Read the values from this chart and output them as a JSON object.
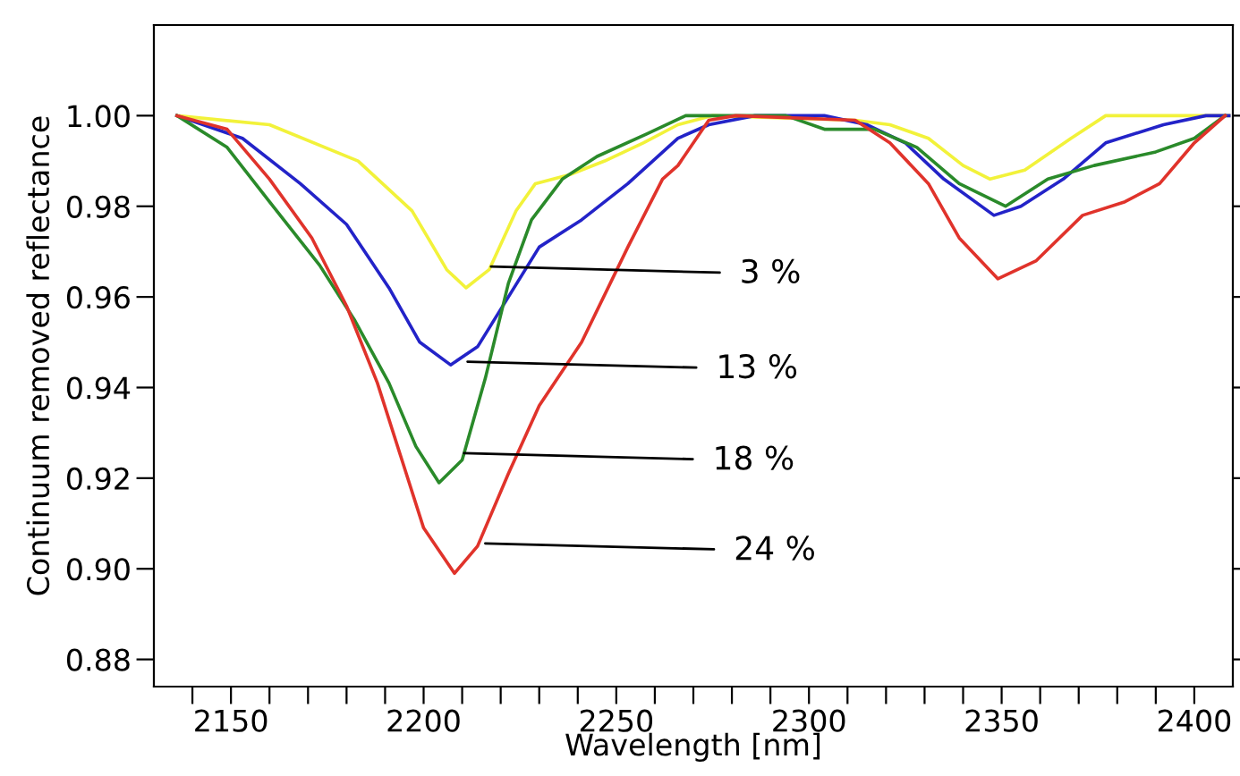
{
  "chart_data": {
    "type": "line",
    "xlabel": "Wavelength [nm]",
    "ylabel": "Continuum removed reflectance",
    "xlim": [
      2130,
      2410
    ],
    "ylim": [
      0.874,
      1.02
    ],
    "xticks": [
      {
        "value": 2140,
        "label": null
      },
      2150,
      {
        "value": 2160,
        "label": null
      },
      {
        "value": 2170,
        "label": null
      },
      {
        "value": 2180,
        "label": null
      },
      {
        "value": 2190,
        "label": null
      },
      2200,
      {
        "value": 2210,
        "label": null
      },
      {
        "value": 2220,
        "label": null
      },
      {
        "value": 2230,
        "label": null
      },
      {
        "value": 2240,
        "label": null
      },
      2250,
      {
        "value": 2260,
        "label": null
      },
      {
        "value": 2270,
        "label": null
      },
      {
        "value": 2280,
        "label": null
      },
      {
        "value": 2290,
        "label": null
      },
      2300,
      {
        "value": 2310,
        "label": null
      },
      {
        "value": 2320,
        "label": null
      },
      {
        "value": 2330,
        "label": null
      },
      {
        "value": 2340,
        "label": null
      },
      2350,
      {
        "value": 2360,
        "label": null
      },
      {
        "value": 2370,
        "label": null
      },
      {
        "value": 2380,
        "label": null
      },
      {
        "value": 2390,
        "label": null
      },
      2400
    ],
    "yticks": [
      {
        "value": 0.88,
        "label": "0.88"
      },
      {
        "value": 0.9,
        "label": "0.90"
      },
      {
        "value": 0.92,
        "label": "0.92"
      },
      {
        "value": 0.94,
        "label": "0.94"
      },
      {
        "value": 0.96,
        "label": "0.96"
      },
      {
        "value": 0.98,
        "label": "0.98"
      },
      {
        "value": 1.0,
        "label": "1.00"
      }
    ],
    "grid": false,
    "legend": false,
    "marker": "none",
    "line_style": "solid",
    "series": [
      {
        "color": "#f2f23a",
        "x": [
          2136,
          2160,
          2183,
          2197,
          2206,
          2211,
          2217,
          2224,
          2229,
          2238,
          2247,
          2257,
          2266,
          2275,
          2312,
          2321,
          2331,
          2340,
          2347,
          2356,
          2368,
          2377,
          2409
        ],
        "values": [
          1.0,
          0.998,
          0.99,
          0.979,
          0.966,
          0.962,
          0.966,
          0.979,
          0.985,
          0.987,
          0.99,
          0.994,
          0.998,
          1.0,
          0.999,
          0.998,
          0.995,
          0.989,
          0.986,
          0.988,
          0.995,
          1.0,
          1.0
        ]
      },
      {
        "color": "#2323c8",
        "x": [
          2136,
          2153,
          2168,
          2180,
          2191,
          2199,
          2207,
          2214,
          2222,
          2230,
          2241,
          2253,
          2266,
          2274,
          2286,
          2304,
          2315,
          2325,
          2335,
          2348,
          2355,
          2366,
          2377,
          2392,
          2403,
          2409
        ],
        "values": [
          1.0,
          0.995,
          0.985,
          0.976,
          0.962,
          0.95,
          0.945,
          0.949,
          0.96,
          0.971,
          0.977,
          0.985,
          0.995,
          0.998,
          1.0,
          1.0,
          0.998,
          0.994,
          0.986,
          0.978,
          0.98,
          0.986,
          0.994,
          0.998,
          1.0,
          1.0
        ]
      },
      {
        "color": "#2a8a2a",
        "x": [
          2136,
          2149,
          2160,
          2173,
          2182,
          2191,
          2198,
          2204,
          2210,
          2216,
          2222,
          2228,
          2236,
          2245,
          2258,
          2268,
          2294,
          2304,
          2317,
          2328,
          2339,
          2351,
          2362,
          2374,
          2390,
          2400,
          2408
        ],
        "values": [
          1.0,
          0.993,
          0.981,
          0.967,
          0.955,
          0.941,
          0.927,
          0.919,
          0.924,
          0.942,
          0.963,
          0.977,
          0.986,
          0.991,
          0.996,
          1.0,
          1.0,
          0.997,
          0.997,
          0.993,
          0.985,
          0.98,
          0.986,
          0.989,
          0.992,
          0.995,
          1.0
        ]
      },
      {
        "color": "#e0332b",
        "x": [
          2136,
          2149,
          2160,
          2171,
          2180,
          2188,
          2194,
          2200,
          2208,
          2214,
          2222,
          2230,
          2241,
          2253,
          2262,
          2266,
          2274,
          2281,
          2312,
          2321,
          2331,
          2339,
          2349,
          2359,
          2371,
          2382,
          2391,
          2400,
          2408
        ],
        "values": [
          1.0,
          0.997,
          0.986,
          0.973,
          0.958,
          0.941,
          0.925,
          0.909,
          0.899,
          0.905,
          0.921,
          0.936,
          0.95,
          0.971,
          0.986,
          0.989,
          0.999,
          1.0,
          0.999,
          0.994,
          0.985,
          0.973,
          0.964,
          0.968,
          0.978,
          0.981,
          0.985,
          0.994,
          1.0
        ]
      }
    ],
    "annotations": [
      {
        "text": "3 %",
        "x": 2217.5,
        "y": 0.9667
      },
      {
        "text": "13 %",
        "x": 2211.4,
        "y": 0.9457
      },
      {
        "text": "18 %",
        "x": 2210.5,
        "y": 0.9255
      },
      {
        "text": "24 %",
        "x": 2216,
        "y": 0.9056
      }
    ]
  }
}
